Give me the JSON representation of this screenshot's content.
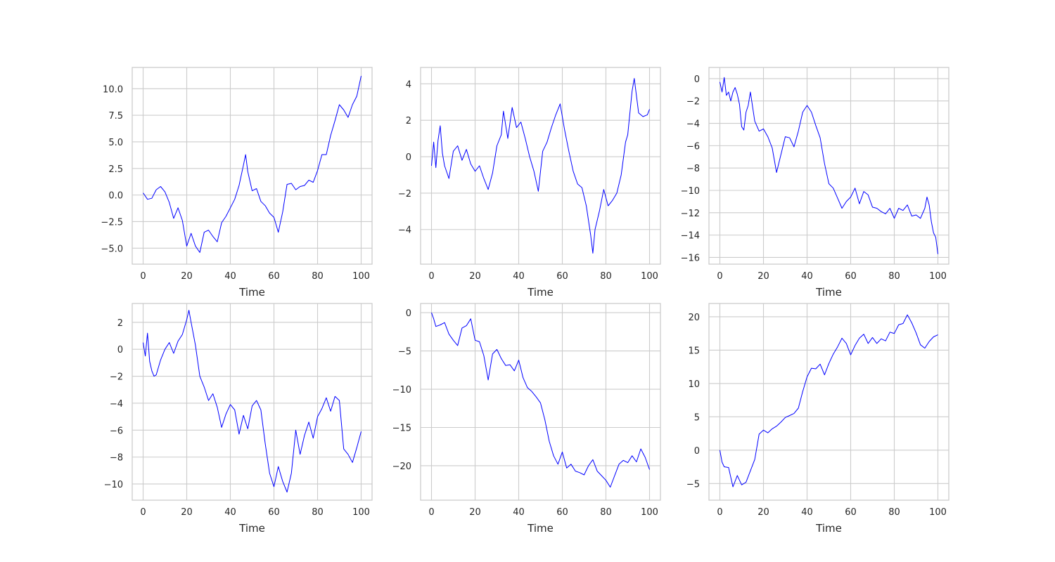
{
  "chart_data": [
    {
      "type": "line",
      "xlabel": "Time",
      "ylabel": "",
      "xlim": [
        -5,
        105
      ],
      "ylim": [
        -6.5,
        12.0
      ],
      "x_ticks": [
        0,
        20,
        40,
        60,
        80,
        100
      ],
      "y_ticks": [
        -5.0,
        -2.5,
        0.0,
        2.5,
        5.0,
        7.5,
        10.0
      ],
      "y_tick_decimals": 1,
      "grid": true,
      "line_color": "#0000ff",
      "series": [
        {
          "x": [
            0,
            2,
            4,
            6,
            8,
            10,
            12,
            14,
            16,
            18,
            20,
            22,
            24,
            26,
            28,
            30,
            32,
            34,
            36,
            38,
            40,
            42,
            44,
            46,
            47,
            48,
            50,
            52,
            54,
            56,
            58,
            60,
            62,
            64,
            66,
            68,
            70,
            72,
            74,
            76,
            78,
            80,
            82,
            84,
            86,
            88,
            90,
            92,
            94,
            96,
            98,
            100
          ],
          "y": [
            0.2,
            -0.4,
            -0.3,
            0.5,
            0.8,
            0.3,
            -0.7,
            -2.2,
            -1.2,
            -2.4,
            -4.8,
            -3.6,
            -4.8,
            -5.4,
            -3.5,
            -3.3,
            -3.9,
            -4.4,
            -2.6,
            -2.0,
            -1.2,
            -0.4,
            0.9,
            2.8,
            3.8,
            2.2,
            0.4,
            0.6,
            -0.6,
            -1.0,
            -1.7,
            -2.1,
            -3.5,
            -1.6,
            1.0,
            1.1,
            0.5,
            0.8,
            0.9,
            1.4,
            1.2,
            2.3,
            3.8,
            3.8,
            5.6,
            7.0,
            8.5,
            8.0,
            7.3,
            8.5,
            9.3,
            11.2
          ]
        }
      ]
    },
    {
      "type": "line",
      "xlabel": "Time",
      "ylabel": "",
      "xlim": [
        -5,
        105
      ],
      "ylim": [
        -5.9,
        4.9
      ],
      "x_ticks": [
        0,
        20,
        40,
        60,
        80,
        100
      ],
      "y_ticks": [
        -4,
        -2,
        0,
        2,
        4
      ],
      "y_tick_decimals": 0,
      "grid": true,
      "line_color": "#0000ff",
      "series": [
        {
          "x": [
            0,
            1,
            2,
            3,
            4,
            5,
            6,
            8,
            10,
            12,
            14,
            16,
            18,
            20,
            22,
            24,
            26,
            28,
            30,
            32,
            33,
            35,
            37,
            39,
            41,
            43,
            45,
            47,
            49,
            51,
            53,
            55,
            57,
            59,
            61,
            63,
            65,
            67,
            69,
            71,
            73,
            74,
            75,
            77,
            79,
            81,
            83,
            85,
            87,
            89,
            90,
            92,
            93,
            95,
            97,
            99,
            100
          ],
          "y": [
            -0.5,
            0.8,
            -0.6,
            0.9,
            1.7,
            0.2,
            -0.5,
            -1.2,
            0.3,
            0.6,
            -0.2,
            0.4,
            -0.4,
            -0.8,
            -0.5,
            -1.2,
            -1.8,
            -0.9,
            0.6,
            1.2,
            2.5,
            1.0,
            2.7,
            1.6,
            1.9,
            1.0,
            0.0,
            -0.8,
            -1.9,
            0.3,
            0.8,
            1.6,
            2.3,
            2.9,
            1.5,
            0.3,
            -0.8,
            -1.5,
            -1.7,
            -2.7,
            -4.3,
            -5.3,
            -4.0,
            -3.0,
            -1.8,
            -2.7,
            -2.4,
            -2.0,
            -1.0,
            0.8,
            1.2,
            3.6,
            4.3,
            2.4,
            2.2,
            2.3,
            2.6
          ]
        }
      ]
    },
    {
      "type": "line",
      "xlabel": "Time",
      "ylabel": "",
      "xlim": [
        -5,
        105
      ],
      "ylim": [
        -16.6,
        1.0
      ],
      "x_ticks": [
        0,
        20,
        40,
        60,
        80,
        100
      ],
      "y_ticks": [
        -16,
        -14,
        -12,
        -10,
        -8,
        -6,
        -4,
        -2,
        0
      ],
      "y_tick_decimals": 0,
      "grid": true,
      "line_color": "#0000ff",
      "series": [
        {
          "x": [
            0,
            1,
            2,
            3,
            4,
            5,
            6,
            7,
            8,
            9,
            10,
            11,
            12,
            13,
            14,
            15,
            16,
            18,
            20,
            22,
            24,
            26,
            28,
            30,
            32,
            34,
            36,
            38,
            40,
            42,
            44,
            46,
            48,
            50,
            52,
            54,
            56,
            58,
            60,
            62,
            64,
            66,
            68,
            70,
            72,
            74,
            76,
            78,
            80,
            82,
            84,
            86,
            88,
            90,
            92,
            94,
            95,
            96,
            97,
            98,
            99,
            100
          ],
          "y": [
            -0.3,
            -1.2,
            0.1,
            -1.5,
            -1.2,
            -2.0,
            -1.2,
            -0.8,
            -1.4,
            -2.3,
            -4.3,
            -4.6,
            -3.0,
            -2.4,
            -1.2,
            -2.5,
            -3.8,
            -4.7,
            -4.5,
            -5.2,
            -6.2,
            -8.4,
            -6.8,
            -5.2,
            -5.3,
            -6.1,
            -4.7,
            -3.0,
            -2.4,
            -3.0,
            -4.2,
            -5.3,
            -7.6,
            -9.4,
            -9.8,
            -10.7,
            -11.6,
            -11.0,
            -10.6,
            -9.8,
            -11.2,
            -10.1,
            -10.4,
            -11.5,
            -11.6,
            -11.9,
            -12.1,
            -11.6,
            -12.5,
            -11.6,
            -11.8,
            -11.3,
            -12.3,
            -12.2,
            -12.5,
            -11.6,
            -10.6,
            -11.3,
            -12.8,
            -13.8,
            -14.2,
            -15.7
          ]
        }
      ]
    },
    {
      "type": "line",
      "xlabel": "Time",
      "ylabel": "",
      "xlim": [
        -5,
        105
      ],
      "ylim": [
        -11.2,
        3.4
      ],
      "x_ticks": [
        0,
        20,
        40,
        60,
        80,
        100
      ],
      "y_ticks": [
        -10,
        -8,
        -6,
        -4,
        -2,
        0,
        2
      ],
      "y_tick_decimals": 0,
      "grid": true,
      "line_color": "#0000ff",
      "series": [
        {
          "x": [
            0,
            1,
            2,
            3,
            4,
            5,
            6,
            8,
            10,
            12,
            14,
            16,
            18,
            20,
            21,
            22,
            24,
            26,
            28,
            30,
            32,
            34,
            36,
            38,
            40,
            42,
            44,
            46,
            48,
            50,
            52,
            54,
            56,
            58,
            60,
            62,
            64,
            66,
            68,
            70,
            72,
            74,
            76,
            78,
            80,
            82,
            84,
            86,
            88,
            90,
            92,
            94,
            96,
            98,
            100
          ],
          "y": [
            0.5,
            -0.5,
            1.2,
            -0.9,
            -1.6,
            -2.0,
            -1.9,
            -0.8,
            0.0,
            0.5,
            -0.3,
            0.6,
            1.1,
            2.2,
            2.9,
            2.0,
            0.3,
            -2.0,
            -2.8,
            -3.8,
            -3.3,
            -4.3,
            -5.8,
            -4.8,
            -4.1,
            -4.5,
            -6.3,
            -4.9,
            -5.9,
            -4.2,
            -3.8,
            -4.5,
            -7.0,
            -9.2,
            -10.2,
            -8.7,
            -9.8,
            -10.6,
            -9.2,
            -6.0,
            -7.8,
            -6.4,
            -5.4,
            -6.6,
            -5.0,
            -4.4,
            -3.6,
            -4.6,
            -3.5,
            -3.8,
            -7.4,
            -7.8,
            -8.4,
            -7.3,
            -6.1
          ]
        }
      ]
    },
    {
      "type": "line",
      "xlabel": "Time",
      "ylabel": "",
      "xlim": [
        -5,
        105
      ],
      "ylim": [
        -24.5,
        1.2
      ],
      "x_ticks": [
        0,
        20,
        40,
        60,
        80,
        100
      ],
      "y_ticks": [
        -20,
        -15,
        -10,
        -5,
        0
      ],
      "y_tick_decimals": 0,
      "grid": true,
      "line_color": "#0000ff",
      "series": [
        {
          "x": [
            0,
            1,
            2,
            4,
            6,
            8,
            10,
            12,
            14,
            16,
            18,
            20,
            22,
            24,
            26,
            28,
            30,
            32,
            34,
            36,
            38,
            40,
            42,
            44,
            46,
            48,
            50,
            52,
            54,
            56,
            58,
            60,
            62,
            64,
            66,
            68,
            70,
            72,
            74,
            76,
            78,
            80,
            82,
            84,
            86,
            88,
            90,
            92,
            94,
            96,
            98,
            100
          ],
          "y": [
            0.0,
            -0.8,
            -1.8,
            -1.6,
            -1.3,
            -2.8,
            -3.6,
            -4.3,
            -2.0,
            -1.7,
            -0.8,
            -3.6,
            -3.8,
            -5.6,
            -8.8,
            -5.4,
            -4.8,
            -6.0,
            -6.9,
            -6.8,
            -7.6,
            -6.2,
            -8.5,
            -9.8,
            -10.3,
            -11.0,
            -11.8,
            -14.0,
            -16.8,
            -18.7,
            -19.8,
            -18.2,
            -20.3,
            -19.8,
            -20.7,
            -20.9,
            -21.2,
            -20.0,
            -19.2,
            -20.7,
            -21.3,
            -21.9,
            -22.8,
            -21.3,
            -19.8,
            -19.3,
            -19.6,
            -18.7,
            -19.5,
            -17.8,
            -18.9,
            -20.5
          ]
        }
      ]
    },
    {
      "type": "line",
      "xlabel": "Time",
      "ylabel": "",
      "xlim": [
        -5,
        105
      ],
      "ylim": [
        -7.5,
        22.0
      ],
      "x_ticks": [
        0,
        20,
        40,
        60,
        80,
        100
      ],
      "y_ticks": [
        -5,
        0,
        5,
        10,
        15,
        20
      ],
      "y_tick_decimals": 0,
      "grid": true,
      "line_color": "#0000ff",
      "series": [
        {
          "x": [
            0,
            1,
            2,
            4,
            6,
            8,
            10,
            12,
            14,
            16,
            18,
            20,
            22,
            24,
            26,
            28,
            30,
            32,
            34,
            36,
            38,
            40,
            42,
            44,
            46,
            48,
            50,
            52,
            54,
            56,
            58,
            60,
            62,
            64,
            66,
            68,
            70,
            72,
            74,
            76,
            78,
            80,
            82,
            84,
            86,
            88,
            90,
            92,
            94,
            96,
            98,
            100
          ],
          "y": [
            0.0,
            -1.8,
            -2.5,
            -2.6,
            -5.5,
            -3.8,
            -5.2,
            -4.8,
            -3.1,
            -1.4,
            2.4,
            3.0,
            2.6,
            3.2,
            3.6,
            4.2,
            4.9,
            5.2,
            5.5,
            6.3,
            8.8,
            11.0,
            12.3,
            12.2,
            12.9,
            11.3,
            13.0,
            14.4,
            15.5,
            16.8,
            16.0,
            14.3,
            15.7,
            16.8,
            17.4,
            16.0,
            16.9,
            16.0,
            16.7,
            16.4,
            17.7,
            17.5,
            18.8,
            19.0,
            20.3,
            19.1,
            17.6,
            15.8,
            15.3,
            16.3,
            17.0,
            17.3
          ]
        }
      ]
    }
  ]
}
